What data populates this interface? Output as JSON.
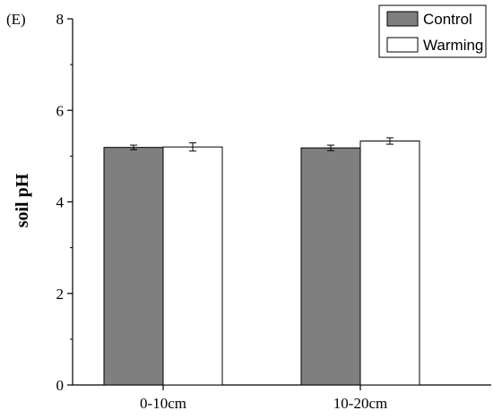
{
  "panel_label": "(E)",
  "chart_data": {
    "type": "bar",
    "title": "",
    "categories": [
      "0-10cm",
      "10-20cm"
    ],
    "series": [
      {
        "name": "Control",
        "values": [
          5.19,
          5.18
        ],
        "errors": [
          0.05,
          0.06
        ],
        "color": "#7f7f7f"
      },
      {
        "name": "Warming",
        "values": [
          5.2,
          5.33
        ],
        "errors": [
          0.09,
          0.07
        ],
        "color": "#ffffff"
      }
    ],
    "xlabel": "",
    "ylabel": "soil pH",
    "ylim": [
      0,
      8
    ],
    "yticks": [
      "0",
      "2",
      "4",
      "6",
      "8"
    ],
    "grid": false,
    "legend_position": "top-right"
  }
}
